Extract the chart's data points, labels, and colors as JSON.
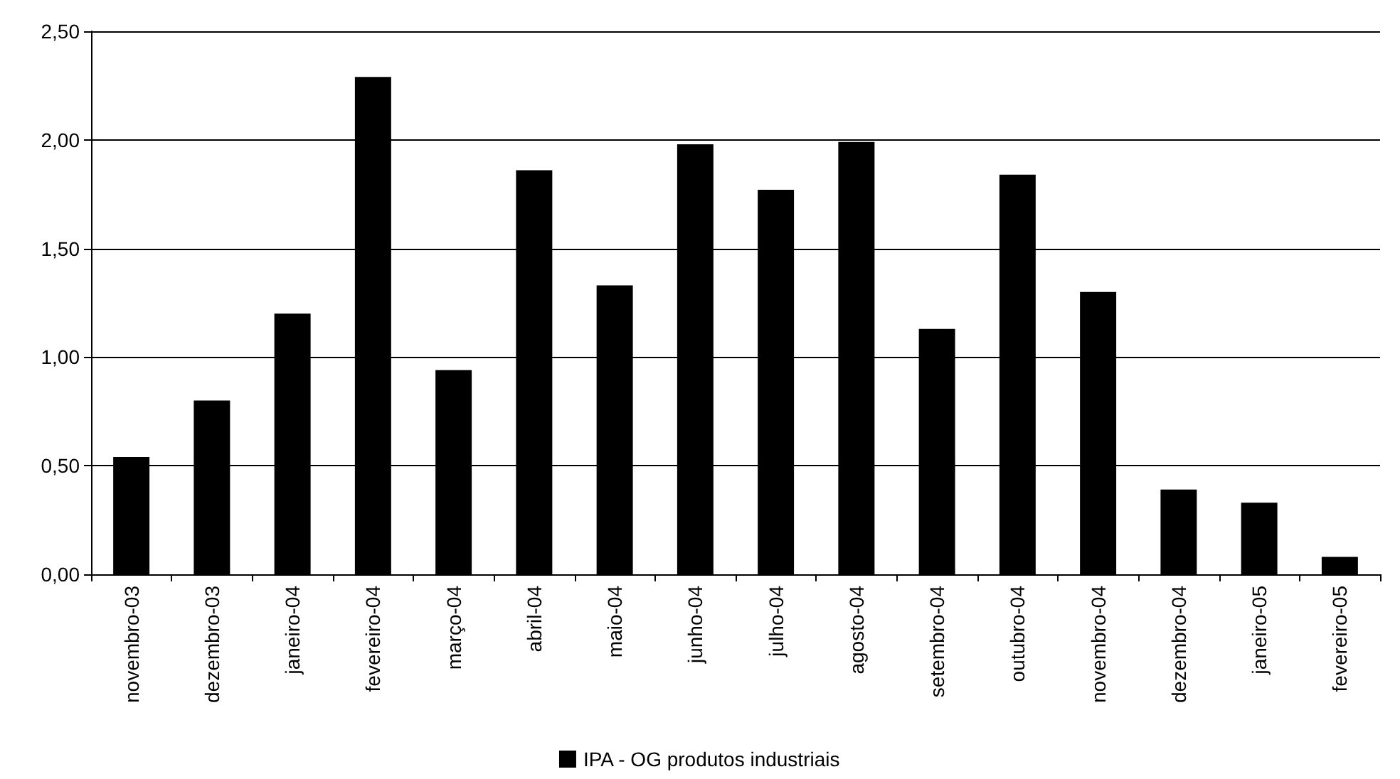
{
  "chart_data": {
    "type": "bar",
    "categories": [
      "novembro-03",
      "dezembro-03",
      "janeiro-04",
      "fevereiro-04",
      "março-04",
      "abril-04",
      "maio-04",
      "junho-04",
      "julho-04",
      "agosto-04",
      "setembro-04",
      "outubro-04",
      "novembro-04",
      "dezembro-04",
      "janeiro-05",
      "fevereiro-05"
    ],
    "series": [
      {
        "name": "IPA - OG produtos industriais",
        "color": "#000000",
        "values": [
          0.54,
          0.8,
          1.2,
          2.29,
          0.94,
          1.86,
          1.33,
          1.98,
          1.77,
          1.99,
          1.13,
          1.84,
          1.3,
          0.39,
          0.33,
          0.08
        ]
      }
    ],
    "ylim": [
      0,
      2.5
    ],
    "yticks": [
      {
        "value": 0,
        "label": "0,00"
      },
      {
        "value": 0.5,
        "label": "0,50"
      },
      {
        "value": 1,
        "label": "1,00"
      },
      {
        "value": 1.5,
        "label": "1,50"
      },
      {
        "value": 2,
        "label": "2,00"
      },
      {
        "value": 2.5,
        "label": "2,50"
      }
    ],
    "grid": "y",
    "legend": "bottom"
  }
}
